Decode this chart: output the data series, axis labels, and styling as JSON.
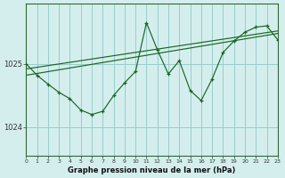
{
  "title": "Graphe pression niveau de la mer (hPa)",
  "background_color": "#d4eeee",
  "grid_color": "#99cccc",
  "line_color": "#1a6620",
  "x_min": 0,
  "x_max": 23,
  "y_min": 1023.55,
  "y_max": 1025.95,
  "yticks": [
    1024,
    1025
  ],
  "xticks": [
    0,
    1,
    2,
    3,
    4,
    5,
    6,
    7,
    8,
    9,
    10,
    11,
    12,
    13,
    14,
    15,
    16,
    17,
    18,
    19,
    20,
    21,
    22,
    23
  ],
  "trend1_x": [
    0,
    23
  ],
  "trend1_y": [
    1024.92,
    1025.52
  ],
  "trend2_x": [
    0,
    23
  ],
  "trend2_y": [
    1024.82,
    1025.48
  ],
  "main_x": [
    0,
    1,
    2,
    3,
    4,
    5,
    6,
    7,
    8,
    9,
    10,
    11,
    12,
    13,
    14,
    15,
    16,
    17,
    18,
    19,
    20,
    21,
    22,
    23
  ],
  "main_y": [
    1025.0,
    1024.82,
    1024.68,
    1024.55,
    1024.45,
    1024.27,
    1024.2,
    1024.25,
    1024.5,
    1024.7,
    1024.88,
    1025.65,
    1025.22,
    1024.84,
    1025.05,
    1024.58,
    1024.42,
    1024.76,
    1025.18,
    1025.36,
    1025.5,
    1025.58,
    1025.6,
    1025.38
  ]
}
